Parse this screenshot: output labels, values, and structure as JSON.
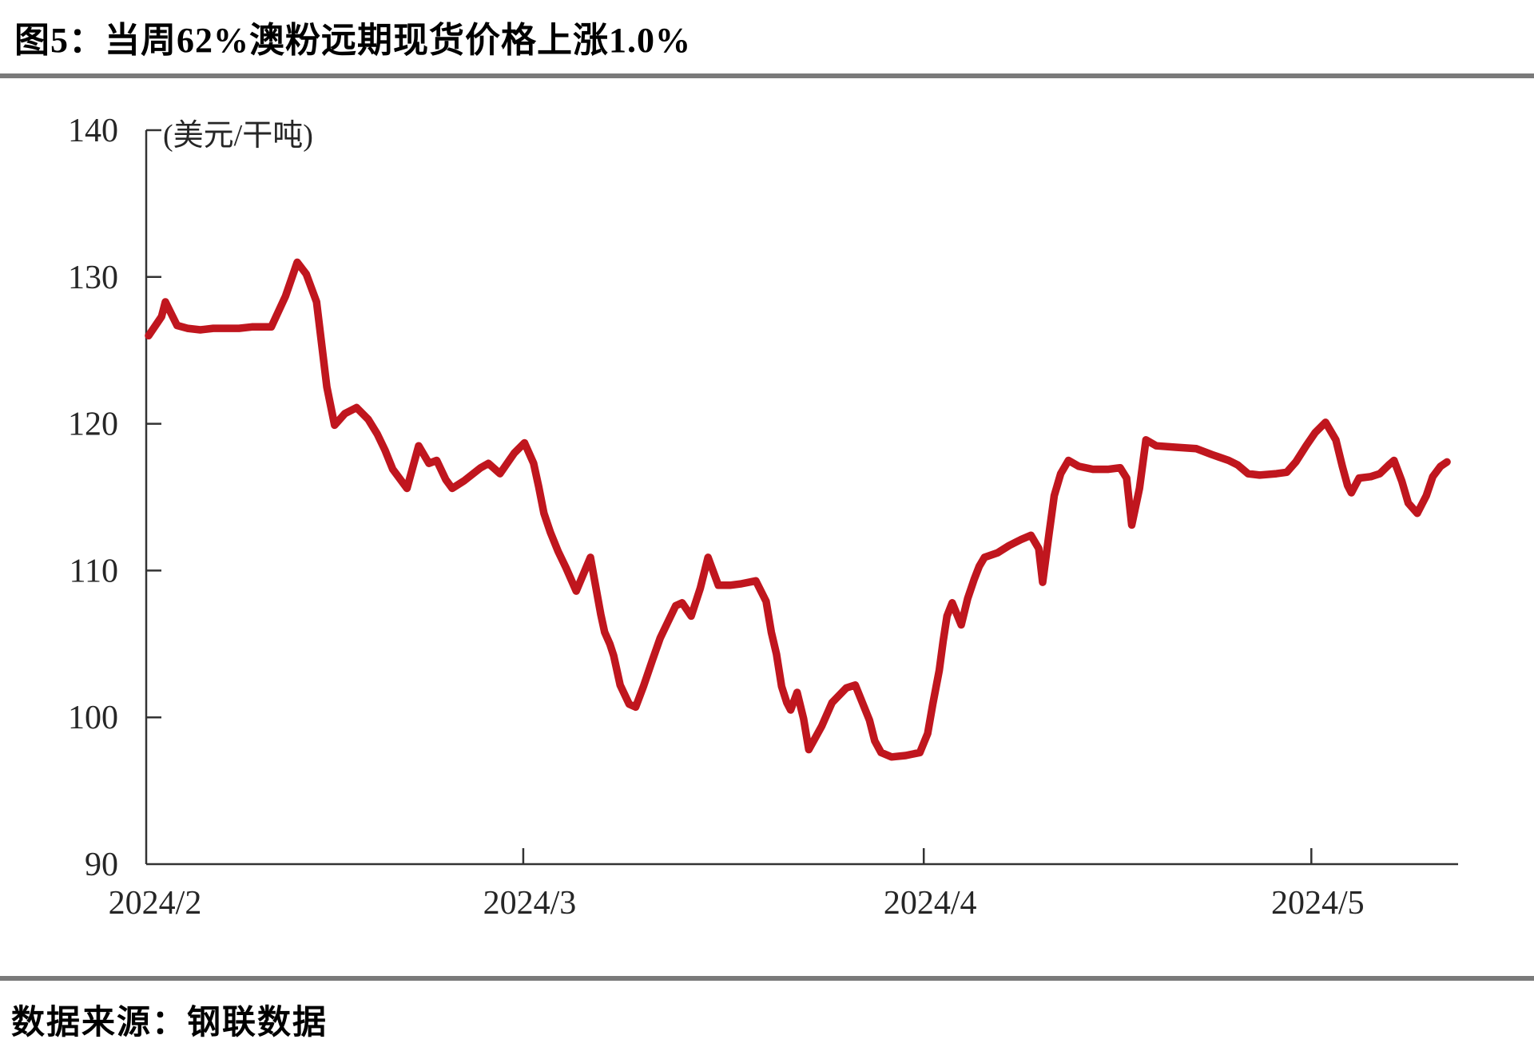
{
  "title": "图5：当周62%澳粉远期现货价格上涨1.0%",
  "source_label": "数据来源：钢联数据",
  "colors": {
    "line": "#c0161e",
    "axis": "#333333",
    "tick_text": "#262626",
    "rule": "#7a7a7a"
  },
  "chart_data": {
    "type": "line",
    "title": "当周62%澳粉远期现货价格上涨1.0%",
    "unit_label": "(美元/干吨)",
    "series_name": "62%澳粉远期现货价格",
    "legend_position": "none",
    "grid": false,
    "y_axis": {
      "min": 90,
      "max": 140,
      "ticks": [
        140,
        130,
        120,
        110,
        100,
        90
      ]
    },
    "x_axis": {
      "tick_labels": [
        "2024/2",
        "2024/3",
        "2024/4",
        "2024/5"
      ],
      "tick_days": [
        0,
        29,
        60,
        90
      ],
      "domain_days": [
        0,
        101
      ]
    },
    "points": [
      [
        0,
        126.0
      ],
      [
        1,
        127.3
      ],
      [
        1.3,
        128.3
      ],
      [
        2.2,
        126.7
      ],
      [
        3,
        126.5
      ],
      [
        4,
        126.4
      ],
      [
        5,
        126.5
      ],
      [
        6,
        126.5
      ],
      [
        7,
        126.5
      ],
      [
        8,
        126.6
      ],
      [
        9,
        126.6
      ],
      [
        9.5,
        126.6
      ],
      [
        10.6,
        128.7
      ],
      [
        11.5,
        131.0
      ],
      [
        12.2,
        130.2
      ],
      [
        13,
        128.3
      ],
      [
        13.8,
        122.5
      ],
      [
        14.4,
        119.9
      ],
      [
        15.2,
        120.7
      ],
      [
        16.1,
        121.1
      ],
      [
        17,
        120.3
      ],
      [
        17.7,
        119.3
      ],
      [
        18.3,
        118.2
      ],
      [
        18.9,
        116.9
      ],
      [
        20,
        115.6
      ],
      [
        20.9,
        118.5
      ],
      [
        21.7,
        117.3
      ],
      [
        22.3,
        117.5
      ],
      [
        23,
        116.2
      ],
      [
        23.5,
        115.6
      ],
      [
        24.4,
        116.1
      ],
      [
        25.7,
        117.0
      ],
      [
        26.3,
        117.3
      ],
      [
        27.2,
        116.6
      ],
      [
        28.3,
        118.0
      ],
      [
        29.1,
        118.7
      ],
      [
        29.8,
        117.3
      ],
      [
        30.2,
        115.7
      ],
      [
        30.6,
        113.9
      ],
      [
        31.1,
        112.6
      ],
      [
        31.7,
        111.3
      ],
      [
        32.3,
        110.2
      ],
      [
        33.1,
        108.6
      ],
      [
        34.2,
        110.9
      ],
      [
        35,
        107.0
      ],
      [
        35.3,
        105.8
      ],
      [
        35.7,
        105.0
      ],
      [
        36,
        104.2
      ],
      [
        36.5,
        102.2
      ],
      [
        37.2,
        100.9
      ],
      [
        37.7,
        100.7
      ],
      [
        38.3,
        102.1
      ],
      [
        39,
        103.9
      ],
      [
        39.6,
        105.4
      ],
      [
        40.2,
        106.5
      ],
      [
        40.8,
        107.6
      ],
      [
        41.3,
        107.8
      ],
      [
        42,
        106.9
      ],
      [
        42.7,
        108.8
      ],
      [
        43.3,
        110.9
      ],
      [
        44.1,
        109.0
      ],
      [
        45,
        109.0
      ],
      [
        45.9,
        109.1
      ],
      [
        47,
        109.3
      ],
      [
        47.8,
        107.9
      ],
      [
        48.2,
        105.8
      ],
      [
        48.6,
        104.3
      ],
      [
        49,
        102.1
      ],
      [
        49.4,
        101.0
      ],
      [
        49.7,
        100.5
      ],
      [
        50.2,
        101.7
      ],
      [
        50.7,
        99.9
      ],
      [
        51.1,
        97.8
      ],
      [
        52.1,
        99.4
      ],
      [
        52.9,
        101.0
      ],
      [
        54,
        102.0
      ],
      [
        54.7,
        102.2
      ],
      [
        55.8,
        99.8
      ],
      [
        56.2,
        98.4
      ],
      [
        56.7,
        97.6
      ],
      [
        57.5,
        97.3
      ],
      [
        58.6,
        97.4
      ],
      [
        59.7,
        97.6
      ],
      [
        60.3,
        98.9
      ],
      [
        60.7,
        100.9
      ],
      [
        61.2,
        103.2
      ],
      [
        61.5,
        105.2
      ],
      [
        61.8,
        106.9
      ],
      [
        62.2,
        107.8
      ],
      [
        62.9,
        106.3
      ],
      [
        63.4,
        108.1
      ],
      [
        63.9,
        109.4
      ],
      [
        64.3,
        110.3
      ],
      [
        64.7,
        110.9
      ],
      [
        65.7,
        111.2
      ],
      [
        66.6,
        111.7
      ],
      [
        67.5,
        112.1
      ],
      [
        68.3,
        112.4
      ],
      [
        68.9,
        111.5
      ],
      [
        69.2,
        109.2
      ],
      [
        69.7,
        112.5
      ],
      [
        70.1,
        115.1
      ],
      [
        70.6,
        116.6
      ],
      [
        71.2,
        117.5
      ],
      [
        72,
        117.1
      ],
      [
        73.1,
        116.9
      ],
      [
        74.3,
        116.9
      ],
      [
        75.2,
        117.0
      ],
      [
        75.7,
        116.3
      ],
      [
        76.1,
        113.1
      ],
      [
        76.7,
        115.6
      ],
      [
        77.2,
        118.9
      ],
      [
        78,
        118.5
      ],
      [
        79.5,
        118.4
      ],
      [
        81.1,
        118.3
      ],
      [
        82.3,
        117.9
      ],
      [
        83.6,
        117.5
      ],
      [
        84.3,
        117.2
      ],
      [
        85.1,
        116.6
      ],
      [
        86,
        116.5
      ],
      [
        87.3,
        116.6
      ],
      [
        88.1,
        116.7
      ],
      [
        88.8,
        117.4
      ],
      [
        89.6,
        118.5
      ],
      [
        90.3,
        119.4
      ],
      [
        91.1,
        120.1
      ],
      [
        91.9,
        118.9
      ],
      [
        92.4,
        117.1
      ],
      [
        92.8,
        115.8
      ],
      [
        93.1,
        115.3
      ],
      [
        93.7,
        116.3
      ],
      [
        94.6,
        116.4
      ],
      [
        95.3,
        116.6
      ],
      [
        96,
        117.2
      ],
      [
        96.4,
        117.5
      ],
      [
        97,
        116.1
      ],
      [
        97.5,
        114.6
      ],
      [
        98.2,
        113.9
      ],
      [
        98.9,
        115.1
      ],
      [
        99.4,
        116.4
      ],
      [
        100,
        117.1
      ],
      [
        100.5,
        117.4
      ]
    ]
  }
}
